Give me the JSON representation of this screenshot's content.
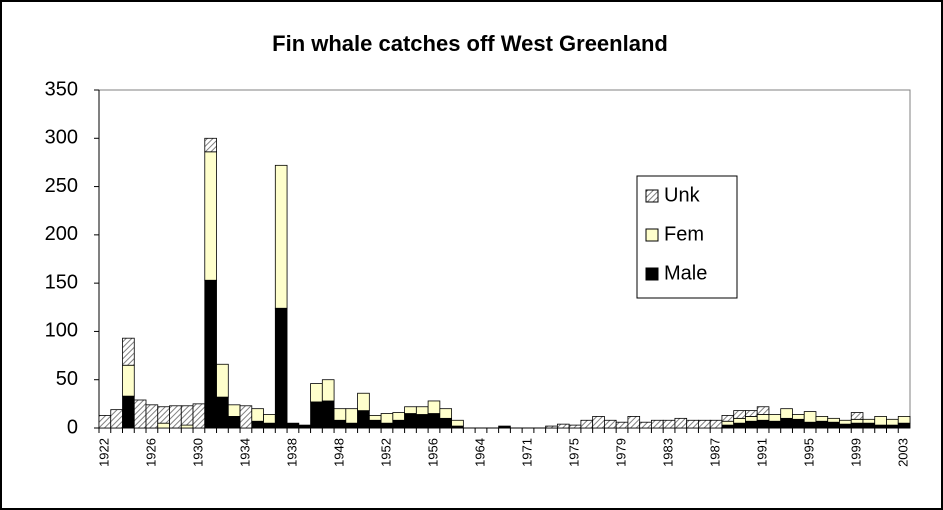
{
  "chart_data": {
    "type": "stacked-bar",
    "title": "Fin whale catches off West Greenland",
    "categories": [
      "1922",
      null,
      null,
      null,
      "1926",
      null,
      null,
      null,
      "1930",
      null,
      null,
      null,
      "1934",
      null,
      null,
      null,
      "1938",
      null,
      null,
      null,
      "1948",
      null,
      null,
      null,
      "1952",
      null,
      null,
      null,
      "1956",
      null,
      null,
      null,
      "1964",
      null,
      null,
      null,
      "1971",
      null,
      null,
      null,
      "1975",
      null,
      null,
      null,
      "1979",
      null,
      null,
      null,
      "1983",
      null,
      null,
      null,
      "1987",
      null,
      null,
      null,
      "1991",
      null,
      null,
      null,
      "1995",
      null,
      null,
      null,
      "1999",
      null,
      null,
      null,
      "2003"
    ],
    "series": [
      {
        "name": "Male",
        "color": "#000000",
        "values": [
          0,
          0,
          33,
          0,
          0,
          0,
          0,
          0,
          0,
          153,
          32,
          12,
          0,
          7,
          5,
          124,
          5,
          3,
          27,
          28,
          8,
          5,
          18,
          8,
          5,
          8,
          15,
          14,
          15,
          10,
          2,
          0,
          0,
          0,
          2,
          0,
          0,
          0,
          0,
          0,
          0,
          0,
          0,
          0,
          0,
          0,
          0,
          0,
          0,
          0,
          0,
          0,
          0,
          3,
          5,
          7,
          8,
          7,
          10,
          9,
          6,
          7,
          6,
          4,
          5,
          5,
          3,
          3,
          5
        ]
      },
      {
        "name": "Fem",
        "color": "#ffffcc",
        "values": [
          0,
          0,
          32,
          0,
          0,
          5,
          0,
          3,
          0,
          133,
          34,
          12,
          0,
          13,
          9,
          148,
          0,
          0,
          19,
          22,
          12,
          15,
          18,
          5,
          10,
          8,
          7,
          8,
          13,
          10,
          6,
          0,
          0,
          0,
          0,
          0,
          0,
          0,
          0,
          0,
          0,
          0,
          0,
          0,
          0,
          0,
          0,
          0,
          0,
          0,
          0,
          0,
          0,
          4,
          5,
          5,
          6,
          7,
          10,
          5,
          11,
          5,
          4,
          4,
          4,
          4,
          9,
          6,
          7
        ]
      },
      {
        "name": "Unk",
        "color": "#808080",
        "pattern": "hatch",
        "values": [
          13,
          19,
          28,
          29,
          24,
          17,
          23,
          20,
          25,
          14,
          0,
          0,
          23,
          0,
          0,
          0,
          0,
          0,
          0,
          0,
          0,
          0,
          0,
          0,
          0,
          0,
          0,
          0,
          0,
          0,
          0,
          0,
          0,
          0,
          0,
          0,
          0,
          0,
          2,
          4,
          3,
          8,
          12,
          8,
          6,
          12,
          6,
          8,
          8,
          10,
          8,
          8,
          8,
          6,
          8,
          6,
          8,
          0,
          0,
          0,
          0,
          0,
          0,
          0,
          7,
          0,
          0,
          0,
          0
        ]
      }
    ],
    "ylim": [
      0,
      350
    ],
    "yticks": [
      0,
      50,
      100,
      150,
      200,
      250,
      300,
      350
    ],
    "grid": false
  }
}
